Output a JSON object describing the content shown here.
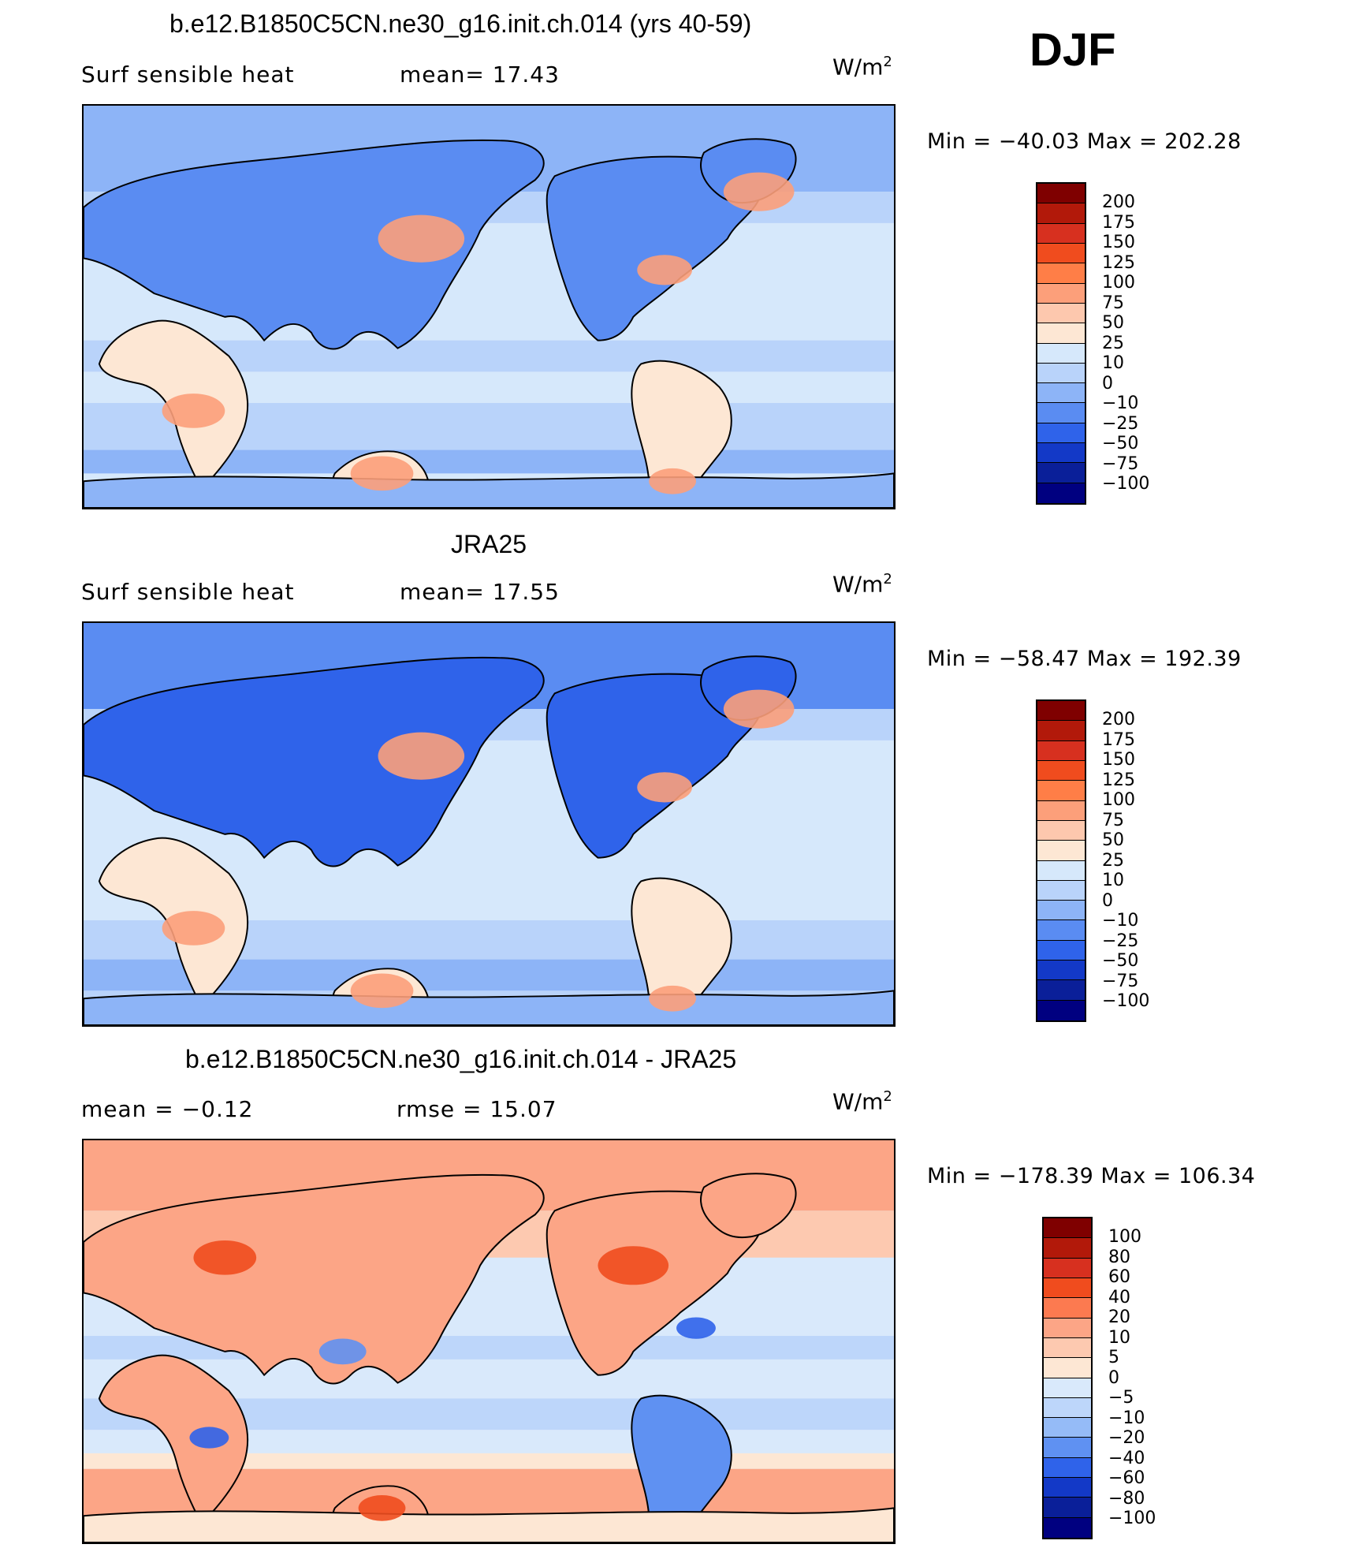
{
  "season": "DJF",
  "panels": [
    {
      "id": "model",
      "title": "b.e12.B1850C5CN.ne30_g16.init.ch.014 (yrs 40-59)",
      "left_label": "Surf  sensible  heat",
      "stat_label": "mean=   17.43",
      "unit": "W/m",
      "unit_sup": "2",
      "minmax": "Min  =  −40.03  Max  =  202.28",
      "scheme": "abs",
      "colorbar_labels": [
        "200",
        "175",
        "150",
        "125",
        "100",
        "75",
        "50",
        "25",
        "10",
        "0",
        "−10",
        "−25",
        "−50",
        "−75",
        "−100"
      ]
    },
    {
      "id": "obs",
      "title": "JRA25",
      "left_label": "Surf  sensible  heat",
      "stat_label": "mean=   17.55",
      "unit": "W/m",
      "unit_sup": "2",
      "minmax": "Min  =  −58.47  Max  =  192.39",
      "scheme": "abs",
      "colorbar_labels": [
        "200",
        "175",
        "150",
        "125",
        "100",
        "75",
        "50",
        "25",
        "10",
        "0",
        "−10",
        "−25",
        "−50",
        "−75",
        "−100"
      ]
    },
    {
      "id": "diff",
      "title": "b.e12.B1850C5CN.ne30_g16.init.ch.014 - JRA25",
      "left_label": "mean  =    −0.12",
      "stat_label": "rmse  =    15.07",
      "unit": "W/m",
      "unit_sup": "2",
      "minmax": "Min  =  −178.39  Max  =  106.34",
      "scheme": "diff",
      "colorbar_labels": [
        "100",
        "80",
        "60",
        "40",
        "20",
        "10",
        "5",
        "0",
        "−5",
        "−10",
        "−20",
        "−40",
        "−60",
        "−80",
        "−100"
      ]
    }
  ],
  "colors": {
    "abs_scale": [
      "#7f0000",
      "#b2190a",
      "#d7301f",
      "#f04c1e",
      "#ff7e47",
      "#fc9f7a",
      "#fdc8ae",
      "#fde7d4",
      "#d6e8fb",
      "#b9d3fa",
      "#8db4f7",
      "#5a8cf2",
      "#2f63ea",
      "#1339c7",
      "#0a1f99",
      "#000080"
    ],
    "diff_scale": [
      "#7f0000",
      "#b2190a",
      "#d7301f",
      "#f04c1e",
      "#fc7a50",
      "#fca586",
      "#fdc9b0",
      "#fde7d4",
      "#d9e9fb",
      "#bdd6fa",
      "#95bbf7",
      "#5f91f2",
      "#2f63ea",
      "#1339c7",
      "#0a1f99",
      "#000080"
    ]
  }
}
